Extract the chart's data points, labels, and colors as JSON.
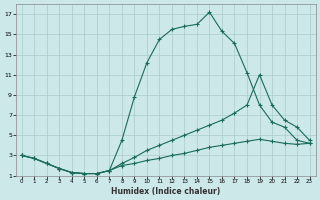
{
  "xlabel": "Humidex (Indice chaleur)",
  "background_color": "#cce8e8",
  "grid_color": "#aacccc",
  "line_color": "#1a6b5a",
  "xlim": [
    -0.5,
    23.5
  ],
  "ylim": [
    1,
    18
  ],
  "yticks": [
    1,
    3,
    5,
    7,
    9,
    11,
    13,
    15,
    17
  ],
  "xticks": [
    0,
    1,
    2,
    3,
    4,
    5,
    6,
    7,
    8,
    9,
    10,
    11,
    12,
    13,
    14,
    15,
    16,
    17,
    18,
    19,
    20,
    21,
    22,
    23
  ],
  "line1_x": [
    0,
    1,
    2,
    3,
    4,
    5,
    6,
    7,
    8,
    9,
    10,
    11,
    12,
    13,
    14,
    15,
    16,
    17,
    18,
    19,
    20,
    21,
    22,
    23
  ],
  "line1_y": [
    3.0,
    2.7,
    2.2,
    1.7,
    1.3,
    1.2,
    1.2,
    1.5,
    4.5,
    8.8,
    12.2,
    14.5,
    15.5,
    15.8,
    16.0,
    17.2,
    15.3,
    14.1,
    11.2,
    8.0,
    6.3,
    5.8,
    4.5,
    4.2
  ],
  "line2_x": [
    0,
    1,
    2,
    3,
    4,
    5,
    6,
    7,
    8,
    9,
    10,
    11,
    12,
    13,
    14,
    15,
    16,
    17,
    18,
    19,
    20,
    21,
    22,
    23
  ],
  "line2_y": [
    3.0,
    2.7,
    2.2,
    1.7,
    1.3,
    1.2,
    1.2,
    1.5,
    2.2,
    2.8,
    3.5,
    4.0,
    4.5,
    5.0,
    5.5,
    6.0,
    6.5,
    7.2,
    8.0,
    11.0,
    8.0,
    6.5,
    5.8,
    4.5
  ],
  "line3_x": [
    0,
    1,
    2,
    3,
    4,
    5,
    6,
    7,
    8,
    9,
    10,
    11,
    12,
    13,
    14,
    15,
    16,
    17,
    18,
    19,
    20,
    21,
    22,
    23
  ],
  "line3_y": [
    3.0,
    2.7,
    2.2,
    1.7,
    1.3,
    1.2,
    1.2,
    1.5,
    2.0,
    2.2,
    2.5,
    2.7,
    3.0,
    3.2,
    3.5,
    3.8,
    4.0,
    4.2,
    4.4,
    4.6,
    4.4,
    4.2,
    4.1,
    4.2
  ]
}
